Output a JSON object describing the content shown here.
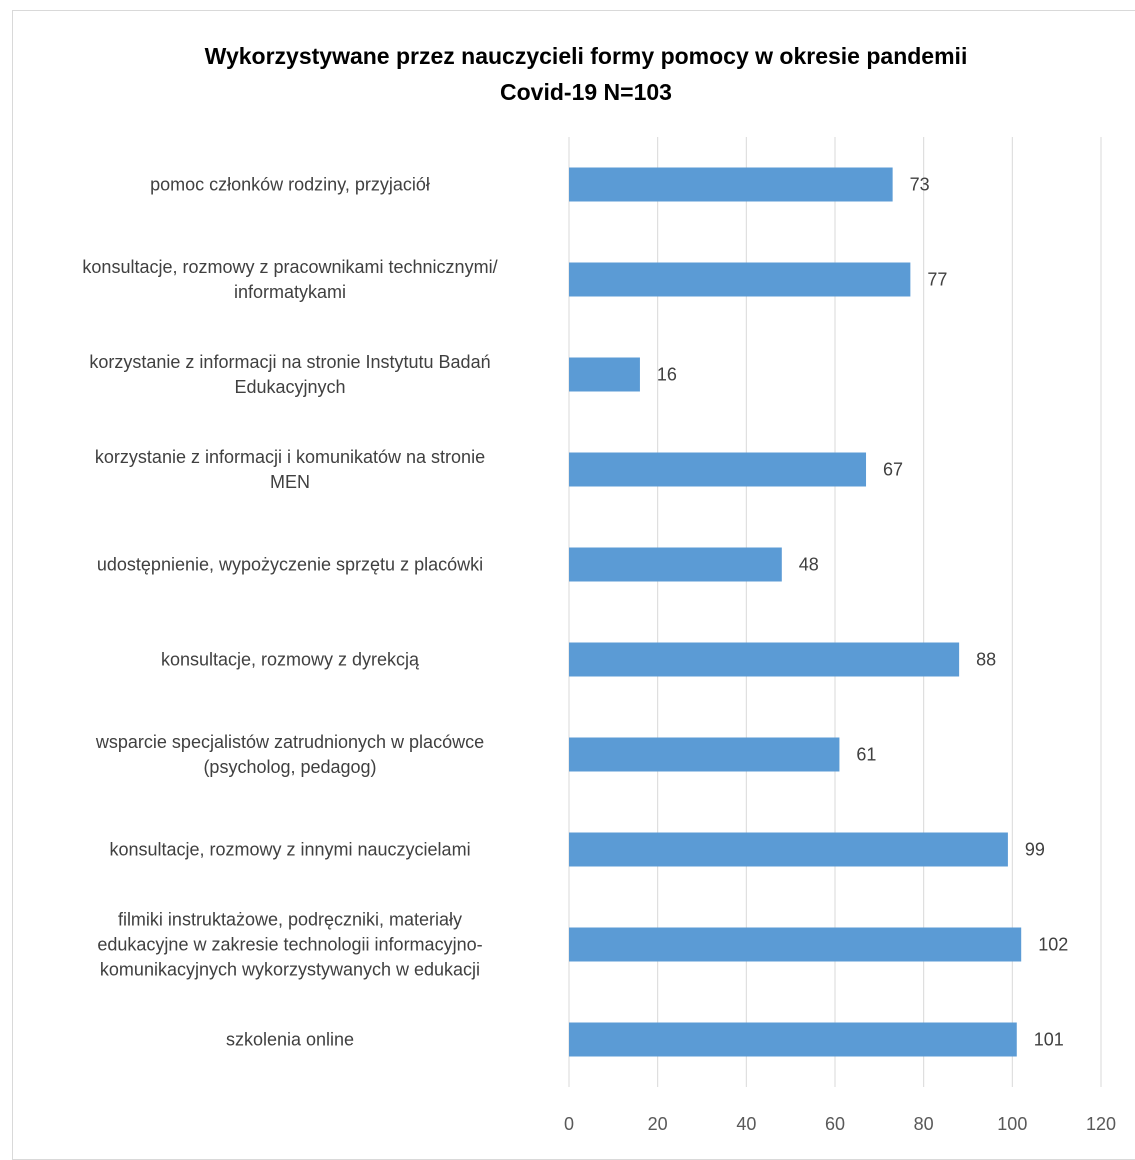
{
  "chart_data": {
    "type": "bar",
    "orientation": "horizontal",
    "title_lines": [
      "Wykorzystywane przez nauczycieli formy pomocy w okresie pandemii",
      "Covid-19 N=103"
    ],
    "categories": [
      [
        "pomoc członków rodziny, przyjaciół"
      ],
      [
        "konsultacje, rozmowy z pracownikami technicznymi/",
        "informatykami"
      ],
      [
        "korzystanie z informacji na stronie Instytutu Badań",
        "Edukacyjnych"
      ],
      [
        "korzystanie z informacji i komunikatów na stronie",
        "MEN"
      ],
      [
        "udostępnienie, wypożyczenie sprzętu z placówki"
      ],
      [
        "konsultacje, rozmowy z dyrekcją"
      ],
      [
        "wsparcie specjalistów zatrudnionych w placówce",
        "(psycholog, pedagog)"
      ],
      [
        "konsultacje, rozmowy z innymi nauczycielami"
      ],
      [
        "filmiki instruktażowe, podręczniki, materiały",
        "edukacyjne w zakresie technologii informacyjno-",
        "komunikacyjnych wykorzystywanych w edukacji"
      ],
      [
        "szkolenia online"
      ]
    ],
    "values": [
      73,
      77,
      16,
      67,
      48,
      88,
      61,
      99,
      102,
      101
    ],
    "xlim": [
      0,
      120
    ],
    "xticks": [
      0,
      20,
      40,
      60,
      80,
      100,
      120
    ],
    "grid": "vertical",
    "data_labels": true,
    "colors": {
      "bar": "#5b9bd5",
      "grid": "#d9d9d9",
      "label": "#404040"
    }
  }
}
